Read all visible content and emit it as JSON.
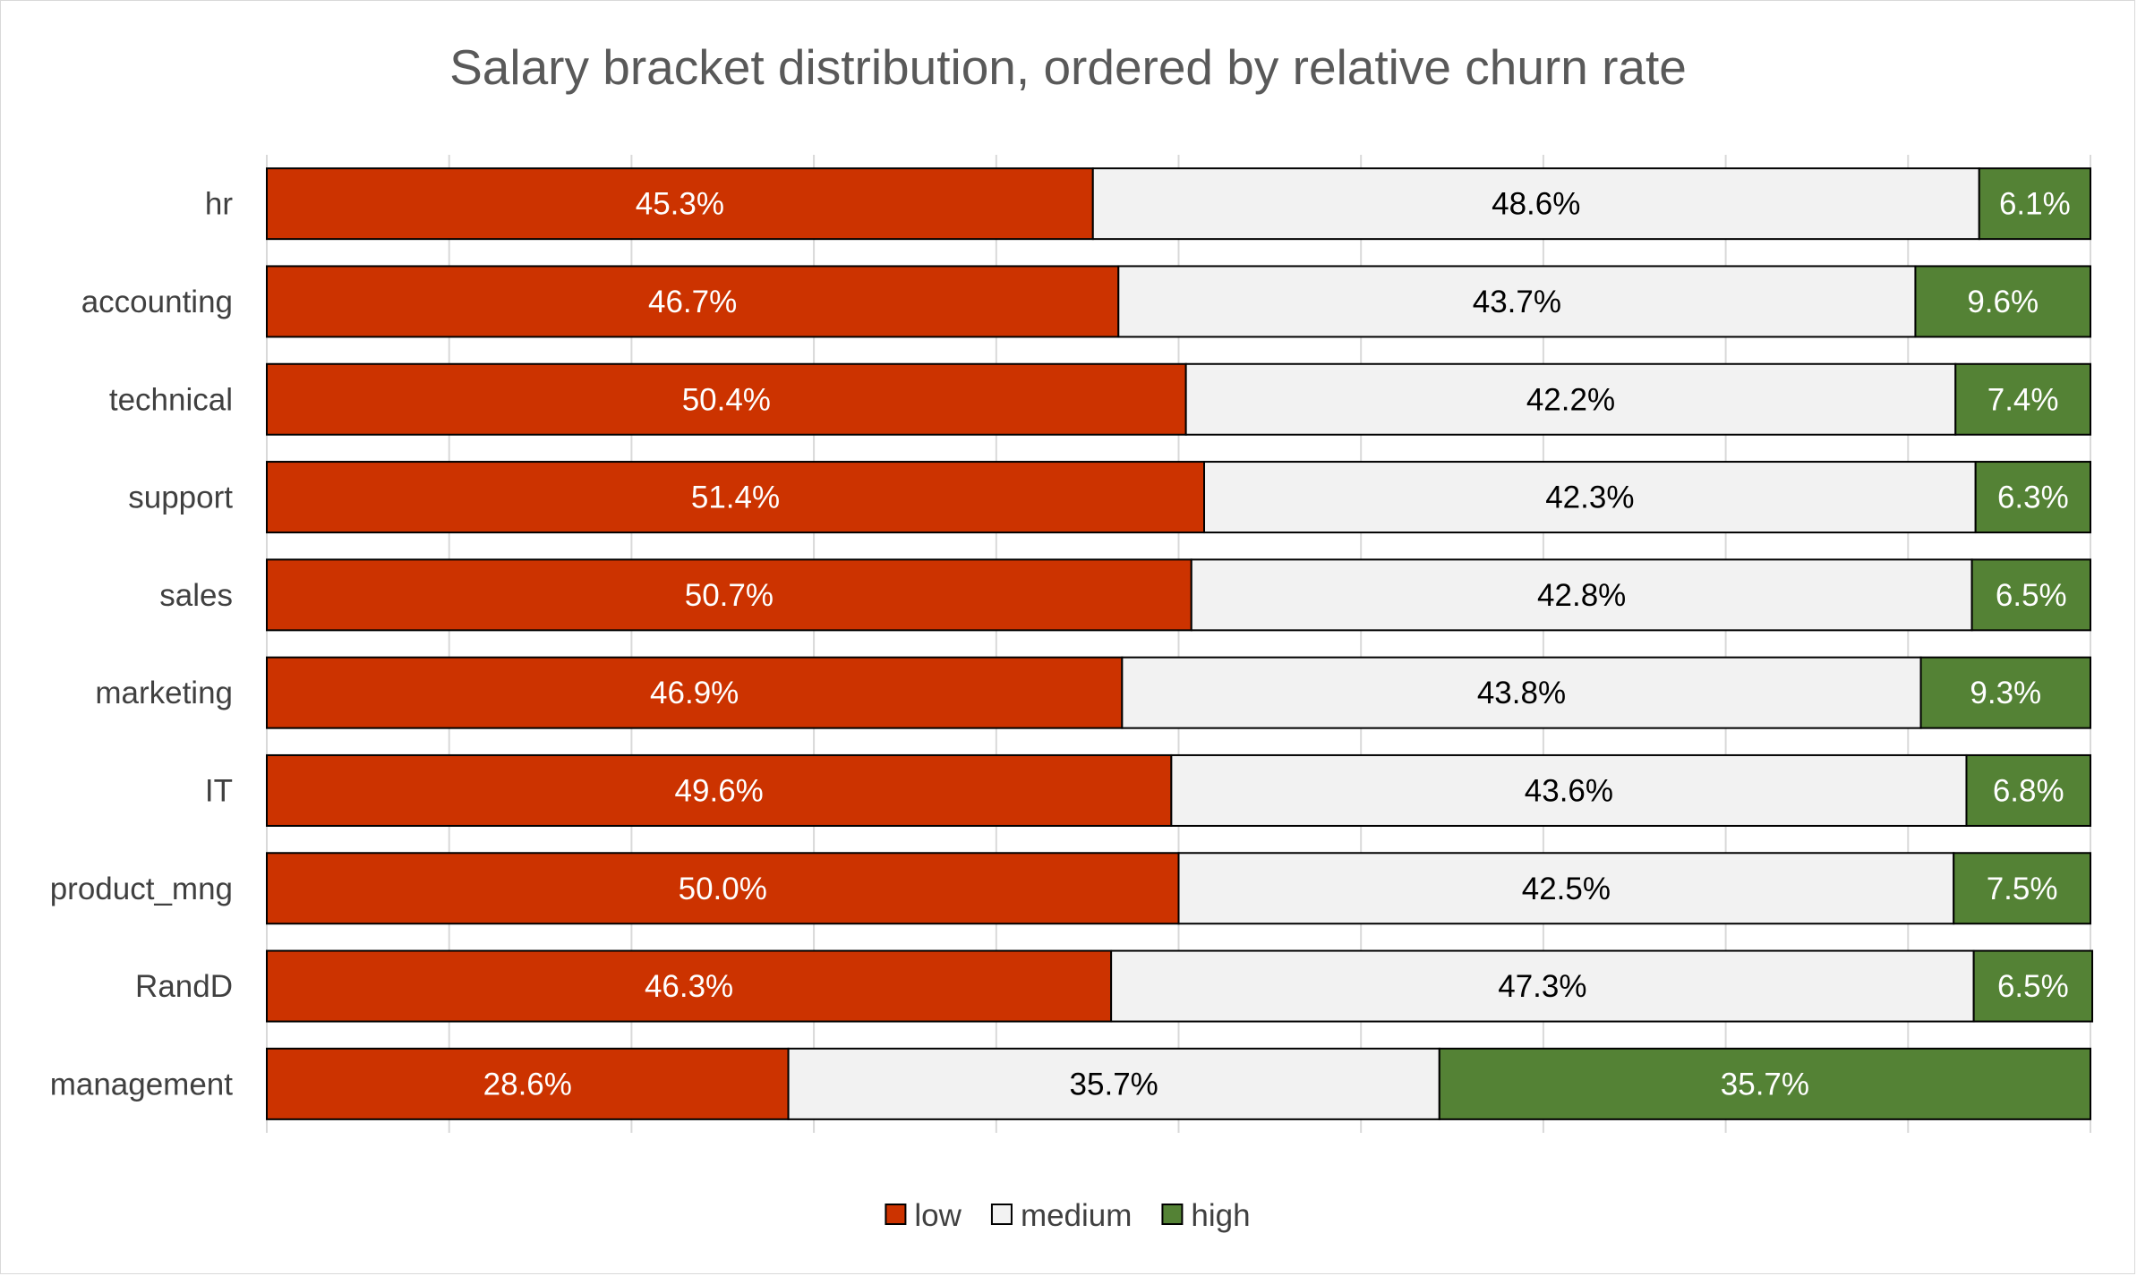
{
  "chart_data": {
    "type": "bar",
    "orientation": "horizontal",
    "stacked": "100%",
    "title": "Salary bracket distribution, ordered by relative churn rate",
    "categories": [
      "hr",
      "accounting",
      "technical",
      "support",
      "sales",
      "marketing",
      "IT",
      "product_mng",
      "RandD",
      "management"
    ],
    "series": [
      {
        "name": "low",
        "color": "#cc3300",
        "label_color": "#ffffff",
        "values": [
          45.3,
          46.7,
          50.4,
          51.4,
          50.7,
          46.9,
          49.6,
          50.0,
          46.3,
          28.6
        ],
        "labels": [
          "45.3%",
          "46.7%",
          "50.4%",
          "51.4%",
          "50.7%",
          "46.9%",
          "49.6%",
          "50.0%",
          "46.3%",
          "28.6%"
        ]
      },
      {
        "name": "medium",
        "color": "#f2f2f2",
        "label_color": "#000000",
        "values": [
          48.6,
          43.7,
          42.2,
          42.3,
          42.8,
          43.8,
          43.6,
          42.5,
          47.3,
          35.7
        ],
        "labels": [
          "48.6%",
          "43.7%",
          "42.2%",
          "42.3%",
          "42.8%",
          "43.8%",
          "43.6%",
          "42.5%",
          "47.3%",
          "35.7%"
        ]
      },
      {
        "name": "high",
        "color": "#548235",
        "label_color": "#ffffff",
        "values": [
          6.1,
          9.6,
          7.4,
          6.3,
          6.5,
          9.3,
          6.8,
          7.5,
          6.5,
          35.7
        ],
        "labels": [
          "6.1%",
          "9.6%",
          "7.4%",
          "6.3%",
          "6.5%",
          "9.3%",
          "6.8%",
          "7.5%",
          "6.5%",
          "35.7%"
        ]
      }
    ],
    "xlim": [
      0,
      100
    ],
    "grid": true,
    "legend_position": "bottom"
  }
}
